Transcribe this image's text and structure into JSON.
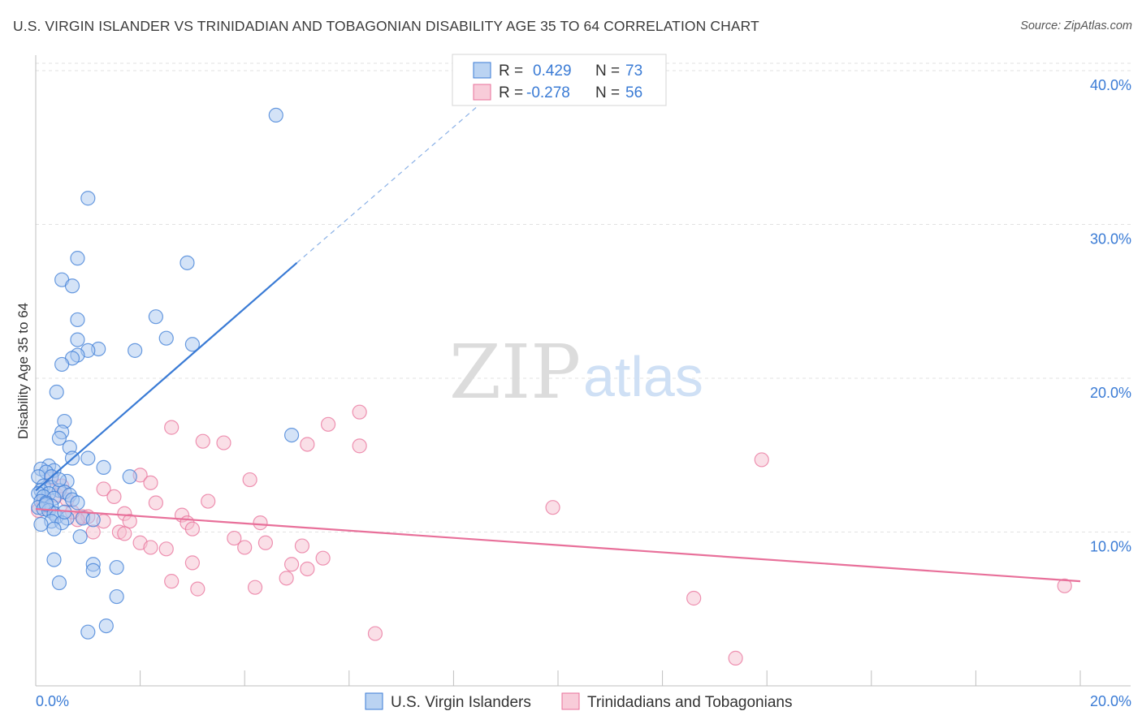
{
  "header": {
    "title": "U.S. VIRGIN ISLANDER VS TRINIDADIAN AND TOBAGONIAN DISABILITY AGE 35 TO 64 CORRELATION CHART",
    "source": "Source: ZipAtlas.com"
  },
  "watermark": {
    "zip": "ZIP",
    "atlas": "atlas"
  },
  "stats": {
    "r_label": "R =",
    "n_label": "N =",
    "blue": {
      "r": "0.429",
      "n": "73"
    },
    "pink": {
      "r": "-0.278",
      "n": "56"
    }
  },
  "colors": {
    "blue": "#3a7bd5",
    "blue_fill": "#a9c8ef",
    "pink": "#e8709a",
    "pink_fill": "#f6bfd0",
    "grid": "#e2e2e2"
  },
  "chart_data": {
    "type": "scatter",
    "title": "U.S. VIRGIN ISLANDER VS TRINIDADIAN AND TOBAGONIAN DISABILITY AGE 35 TO 64 CORRELATION CHART",
    "xlabel": "",
    "ylabel": "Disability Age 35 to 64",
    "xlim": [
      0,
      20
    ],
    "ylim": [
      0,
      41
    ],
    "x_ticks": [
      {
        "value": 0,
        "label": "0.0%"
      },
      {
        "value": 20,
        "label": "20.0%"
      }
    ],
    "y_ticks": [
      {
        "value": 10,
        "label": "10.0%"
      },
      {
        "value": 20,
        "label": "20.0%"
      },
      {
        "value": 30,
        "label": "30.0%"
      },
      {
        "value": 40,
        "label": "40.0%"
      }
    ],
    "grid": true,
    "legend_position": "bottom",
    "series": [
      {
        "name": "U.S. Virgin Islanders",
        "color": "#3a7bd5",
        "trend": {
          "x1": 0,
          "y1": 12.7,
          "x2": 5.0,
          "y2": 27.5,
          "dash_to_x": 8.5,
          "dash_to_y": 37.8
        },
        "points": [
          [
            4.6,
            37.1
          ],
          [
            1.0,
            31.7
          ],
          [
            0.8,
            27.8
          ],
          [
            2.9,
            27.5
          ],
          [
            0.5,
            26.4
          ],
          [
            0.7,
            26.0
          ],
          [
            2.3,
            24.0
          ],
          [
            0.8,
            23.8
          ],
          [
            2.5,
            22.6
          ],
          [
            0.8,
            22.5
          ],
          [
            3.0,
            22.2
          ],
          [
            1.2,
            21.9
          ],
          [
            1.0,
            21.8
          ],
          [
            1.9,
            21.8
          ],
          [
            0.8,
            21.5
          ],
          [
            0.7,
            21.3
          ],
          [
            0.5,
            20.9
          ],
          [
            0.4,
            19.1
          ],
          [
            0.55,
            17.2
          ],
          [
            0.5,
            16.5
          ],
          [
            0.45,
            16.1
          ],
          [
            4.9,
            16.3
          ],
          [
            0.65,
            15.5
          ],
          [
            1.0,
            14.8
          ],
          [
            0.7,
            14.8
          ],
          [
            1.3,
            14.2
          ],
          [
            0.25,
            14.3
          ],
          [
            0.1,
            14.1
          ],
          [
            0.35,
            14.0
          ],
          [
            0.2,
            13.9
          ],
          [
            0.05,
            13.6
          ],
          [
            0.3,
            13.6
          ],
          [
            1.8,
            13.6
          ],
          [
            0.6,
            13.3
          ],
          [
            0.15,
            13.0
          ],
          [
            0.3,
            12.9
          ],
          [
            0.45,
            12.7
          ],
          [
            0.1,
            12.7
          ],
          [
            0.55,
            12.6
          ],
          [
            0.25,
            12.5
          ],
          [
            0.05,
            12.5
          ],
          [
            0.65,
            12.4
          ],
          [
            0.15,
            12.3
          ],
          [
            0.35,
            12.2
          ],
          [
            0.7,
            12.1
          ],
          [
            0.1,
            12.0
          ],
          [
            0.2,
            11.9
          ],
          [
            0.8,
            11.9
          ],
          [
            0.3,
            11.7
          ],
          [
            0.05,
            11.6
          ],
          [
            0.15,
            11.5
          ],
          [
            0.25,
            11.4
          ],
          [
            0.35,
            11.2
          ],
          [
            0.4,
            11.0
          ],
          [
            0.6,
            10.9
          ],
          [
            0.9,
            10.9
          ],
          [
            1.1,
            10.8
          ],
          [
            0.3,
            10.7
          ],
          [
            0.5,
            10.6
          ],
          [
            0.1,
            10.5
          ],
          [
            0.35,
            10.2
          ],
          [
            0.85,
            9.7
          ],
          [
            0.35,
            8.2
          ],
          [
            1.1,
            7.9
          ],
          [
            1.55,
            7.7
          ],
          [
            1.1,
            7.5
          ],
          [
            0.45,
            6.7
          ],
          [
            1.55,
            5.8
          ],
          [
            1.35,
            3.9
          ],
          [
            1.0,
            3.5
          ],
          [
            0.2,
            11.8
          ],
          [
            0.55,
            11.3
          ],
          [
            0.45,
            13.4
          ]
        ]
      },
      {
        "name": "Trinidadians and Tobagonians",
        "color": "#e8709a",
        "trend": {
          "x1": 0,
          "y1": 11.5,
          "x2": 20.0,
          "y2": 6.8
        },
        "points": [
          [
            6.2,
            17.8
          ],
          [
            5.6,
            17.0
          ],
          [
            2.6,
            16.8
          ],
          [
            3.2,
            15.9
          ],
          [
            3.6,
            15.8
          ],
          [
            5.2,
            15.7
          ],
          [
            6.2,
            15.6
          ],
          [
            13.9,
            14.7
          ],
          [
            2.0,
            13.7
          ],
          [
            0.3,
            13.5
          ],
          [
            2.2,
            13.2
          ],
          [
            4.1,
            13.4
          ],
          [
            1.3,
            12.8
          ],
          [
            0.4,
            12.4
          ],
          [
            1.5,
            12.3
          ],
          [
            3.3,
            12.0
          ],
          [
            0.6,
            12.1
          ],
          [
            2.3,
            11.9
          ],
          [
            9.9,
            11.6
          ],
          [
            1.7,
            11.2
          ],
          [
            2.8,
            11.1
          ],
          [
            0.9,
            11.0
          ],
          [
            1.0,
            11.0
          ],
          [
            1.8,
            10.7
          ],
          [
            0.8,
            10.8
          ],
          [
            1.3,
            10.7
          ],
          [
            2.9,
            10.6
          ],
          [
            4.3,
            10.6
          ],
          [
            3.0,
            10.2
          ],
          [
            1.6,
            10.0
          ],
          [
            1.7,
            9.9
          ],
          [
            1.1,
            10.0
          ],
          [
            3.8,
            9.6
          ],
          [
            4.4,
            9.3
          ],
          [
            2.0,
            9.3
          ],
          [
            5.1,
            9.1
          ],
          [
            2.2,
            9.0
          ],
          [
            4.0,
            9.0
          ],
          [
            2.5,
            8.9
          ],
          [
            5.5,
            8.3
          ],
          [
            3.0,
            8.0
          ],
          [
            4.9,
            7.9
          ],
          [
            5.2,
            7.6
          ],
          [
            4.8,
            7.0
          ],
          [
            2.6,
            6.8
          ],
          [
            4.2,
            6.4
          ],
          [
            3.1,
            6.3
          ],
          [
            12.6,
            5.7
          ],
          [
            6.5,
            3.4
          ],
          [
            13.4,
            1.8
          ],
          [
            19.7,
            6.5
          ],
          [
            0.15,
            12.0
          ],
          [
            0.2,
            11.7
          ],
          [
            0.05,
            11.4
          ],
          [
            0.5,
            13.0
          ],
          [
            0.7,
            11.3
          ]
        ]
      }
    ]
  }
}
